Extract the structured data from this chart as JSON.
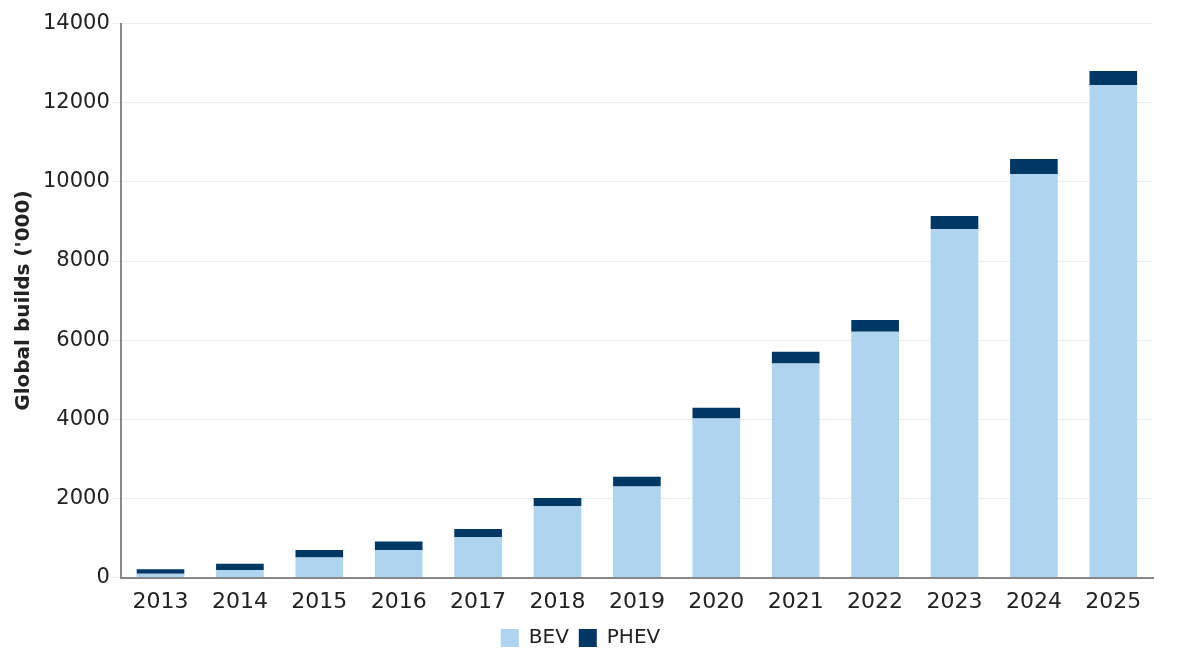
{
  "chart_data": {
    "type": "bar",
    "stacked": true,
    "ylabel": "Global builds ('000)",
    "categories": [
      "2013",
      "2014",
      "2015",
      "2016",
      "2017",
      "2018",
      "2019",
      "2020",
      "2021",
      "2022",
      "2023",
      "2024",
      "2025"
    ],
    "series": [
      {
        "name": "BEV",
        "color": "#aed4f0",
        "values": [
          100,
          190,
          510,
          700,
          1020,
          1800,
          2300,
          4020,
          5410,
          6210,
          8810,
          10200,
          12450
        ]
      },
      {
        "name": "PHEV",
        "color": "#003865",
        "values": [
          110,
          160,
          190,
          210,
          210,
          210,
          250,
          270,
          300,
          300,
          330,
          380,
          350
        ]
      }
    ],
    "ylim": [
      0,
      14000
    ],
    "yticks": [
      0,
      2000,
      4000,
      6000,
      8000,
      10000,
      12000,
      14000
    ],
    "grid": "y",
    "legend": "bottom"
  }
}
